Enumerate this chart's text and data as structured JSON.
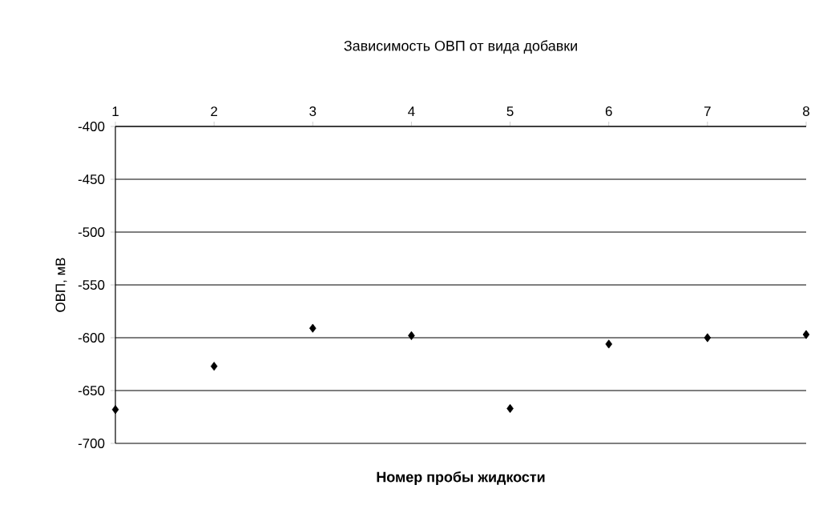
{
  "chart_data": {
    "type": "scatter",
    "title": "Зависимость ОВП от вида добавки",
    "xlabel": "Номер пробы жидкости",
    "ylabel": "ОВП, мВ",
    "x": [
      1,
      2,
      3,
      4,
      5,
      6,
      7,
      8
    ],
    "values": [
      -668,
      -627,
      -591,
      -598,
      -667,
      -606,
      -600,
      -597
    ],
    "color": "#000000",
    "marker": "diamond",
    "grid": "y",
    "xlim": [
      1,
      8
    ],
    "xticks": [
      1,
      2,
      3,
      4,
      5,
      6,
      7,
      8
    ],
    "ylim": [
      -700,
      -400
    ],
    "yticks": [
      -700,
      -650,
      -600,
      -550,
      -500,
      -450,
      -400
    ]
  }
}
